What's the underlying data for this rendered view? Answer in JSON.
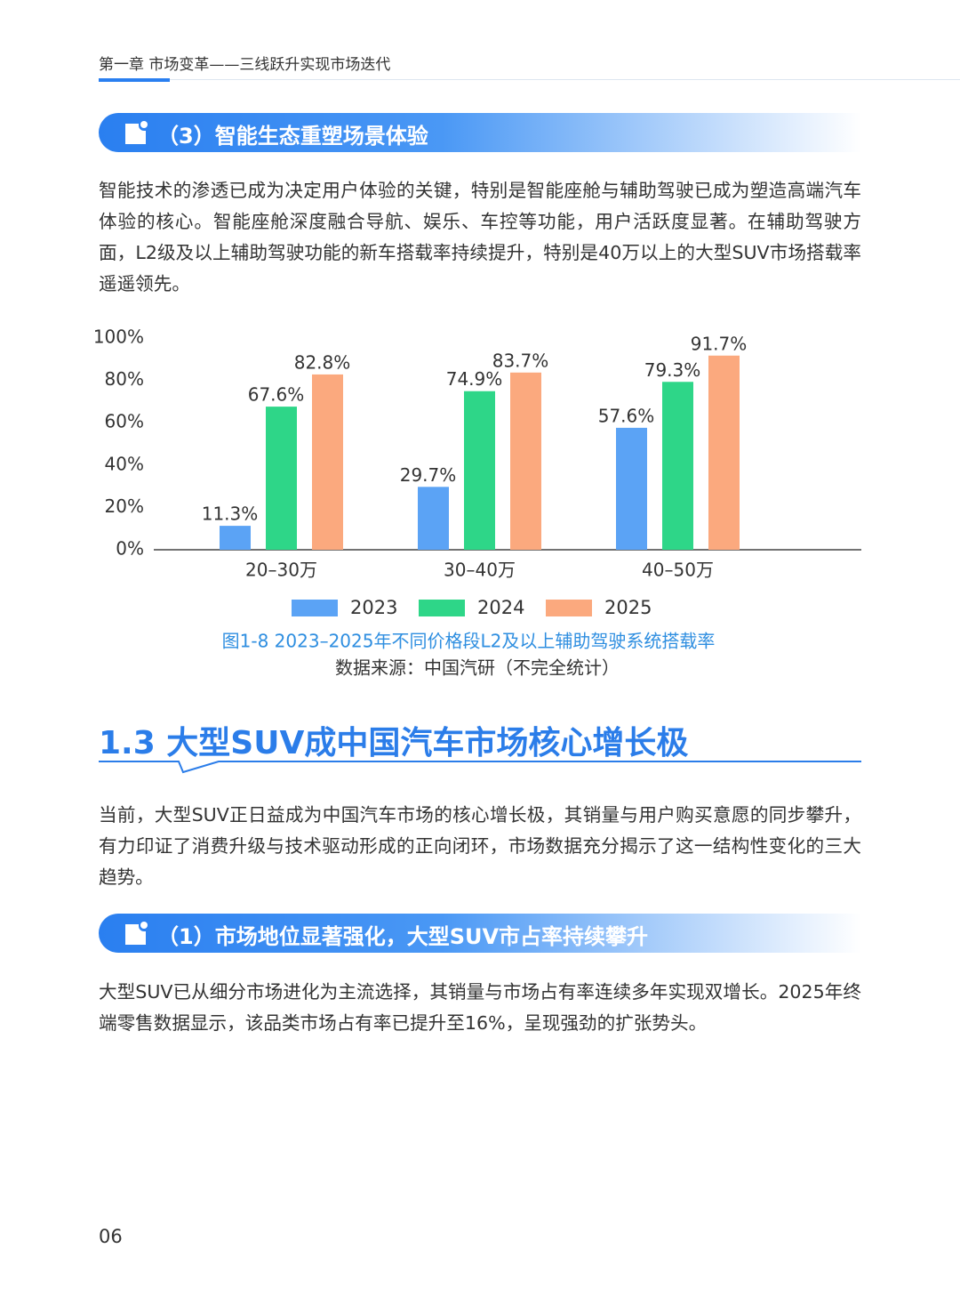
{
  "header": {
    "chapter": "第一章 市场变革——三线跃升实现市场迭代"
  },
  "section1": {
    "heading": "（3）智能生态重塑场景体验",
    "paragraph": "智能技术的渗透已成为决定用户体验的关键，特别是智能座舱与辅助驾驶已成为塑造高端汽车体验的核心。智能座舱深度融合导航、娱乐、车控等功能，用户活跃度显著。在辅助驾驶方面，L2级及以上辅助驾驶功能的新车搭载率持续提升，特别是40万以上的大型SUV市场搭载率遥遥领先。"
  },
  "chart_data": {
    "type": "bar",
    "categories": [
      "20–30万",
      "30–40万",
      "40–50万"
    ],
    "series": [
      {
        "name": "2023",
        "color": "#5ba3f5",
        "values": [
          11.3,
          29.7,
          57.6
        ],
        "value_labels": [
          "11.3%",
          "29.7%",
          "57.6%"
        ]
      },
      {
        "name": "2024",
        "color": "#2ed688",
        "values": [
          67.6,
          74.9,
          79.3
        ],
        "value_labels": [
          "67.6%",
          "74.9%",
          "79.3%"
        ]
      },
      {
        "name": "2025",
        "color": "#fba97e",
        "values": [
          82.8,
          83.7,
          91.7
        ],
        "value_labels": [
          "82.8%",
          "83.7%",
          "91.7%"
        ]
      }
    ],
    "ylim": [
      0,
      100
    ],
    "yticks": [
      {
        "value": 0,
        "label": "0%"
      },
      {
        "value": 20,
        "label": "20%"
      },
      {
        "value": 40,
        "label": "40%"
      },
      {
        "value": 60,
        "label": "60%"
      },
      {
        "value": 80,
        "label": "80%"
      },
      {
        "value": 100,
        "label": "100%"
      }
    ],
    "caption": "图1-8 2023–2025年不同价格段L2及以上辅助驾驶系统搭载率",
    "source": "数据来源：中国汽研（不完全统计）"
  },
  "section2": {
    "heading": "1.3 大型SUV成中国汽车市场核心增长极",
    "paragraph": "当前，大型SUV正日益成为中国汽车市场的核心增长极，其销量与用户购买意愿的同步攀升，有力印证了消费升级与技术驱动形成的正向闭环，市场数据充分揭示了这一结构性变化的三大趋势。",
    "subheading": "（1）市场地位显著强化，大型SUV市占率持续攀升",
    "subparagraph": "大型SUV已从细分市场进化为主流选择，其销量与市场占有率连续多年实现双增长。2025年终端零售数据显示，该品类市场占有率已提升至16%，呈现强劲的扩张势头。"
  },
  "footer": {
    "page": "06"
  }
}
